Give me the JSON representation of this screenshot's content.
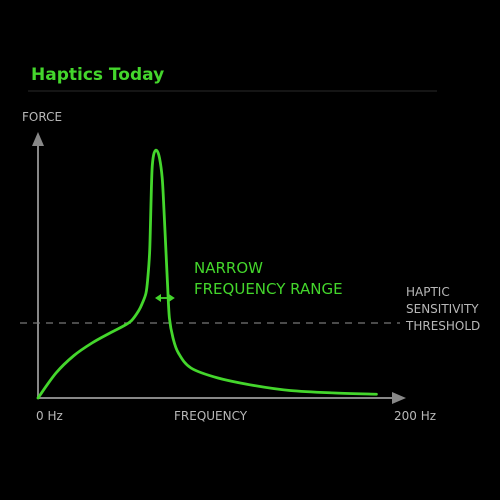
{
  "chart_data": {
    "type": "line",
    "title": "Haptics Today",
    "ylabel": "FORCE",
    "xlabel": "FREQUENCY",
    "x_tick_labels": [
      "0 Hz",
      "200 Hz"
    ],
    "xlim": [
      0,
      200
    ],
    "ylim": [
      0,
      100
    ],
    "grid": false,
    "legend": "none",
    "threshold": {
      "y": 30,
      "label_lines": [
        "HAPTIC",
        "SENSITIVITY",
        "THRESHOLD"
      ]
    },
    "annotation": {
      "lines": [
        "NARROW",
        "FREQUENCY RANGE"
      ],
      "range_x": [
        65,
        76
      ],
      "y": 40
    },
    "series": [
      {
        "points": [
          [
            0,
            0
          ],
          [
            10,
            10
          ],
          [
            20,
            17
          ],
          [
            30,
            22
          ],
          [
            40,
            26
          ],
          [
            48,
            29
          ],
          [
            52,
            31
          ],
          [
            56,
            35
          ],
          [
            58,
            38
          ],
          [
            60,
            42
          ],
          [
            61,
            48
          ],
          [
            62,
            58
          ],
          [
            62.5,
            70
          ],
          [
            63,
            84
          ],
          [
            63.5,
            93
          ],
          [
            64.5,
            98
          ],
          [
            66,
            99
          ],
          [
            67.5,
            96
          ],
          [
            69,
            88
          ],
          [
            70,
            75
          ],
          [
            71,
            60
          ],
          [
            72,
            45
          ],
          [
            73,
            32
          ],
          [
            75,
            24
          ],
          [
            78,
            18
          ],
          [
            85,
            12
          ],
          [
            100,
            8
          ],
          [
            120,
            5
          ],
          [
            140,
            3
          ],
          [
            165,
            2
          ],
          [
            188,
            1.5
          ]
        ]
      }
    ],
    "colors": {
      "curve": "#44d62c",
      "title": "#44d62c",
      "annotation": "#44d62c",
      "axis": "#888888",
      "label": "#b8b8b8",
      "threshold": "#777777"
    }
  }
}
